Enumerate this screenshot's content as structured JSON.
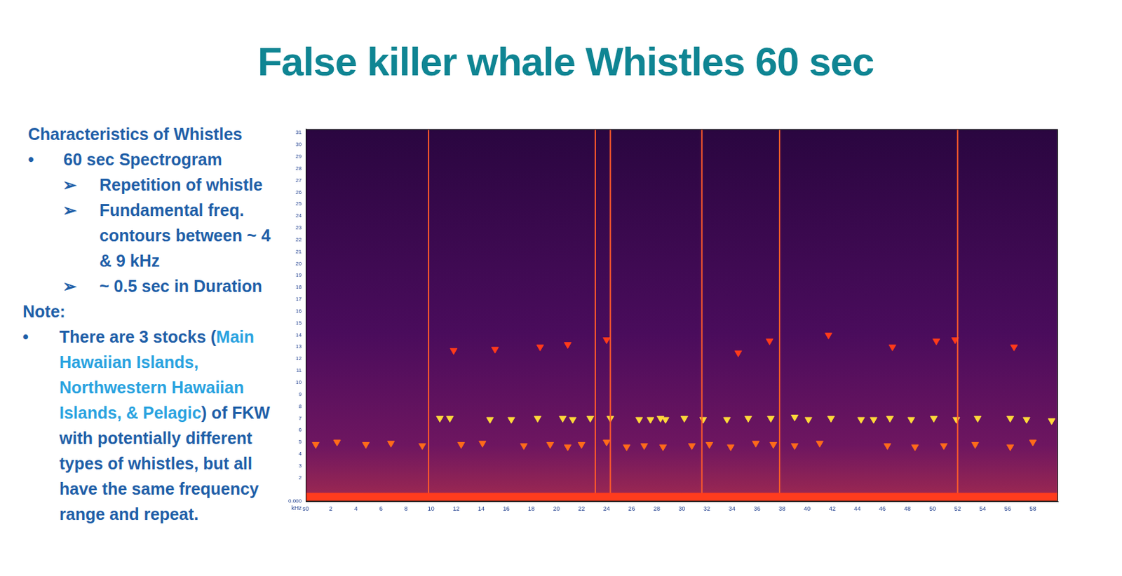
{
  "title": "False killer whale Whistles 60 sec",
  "left_text": {
    "heading": "Characteristics of Whistles",
    "bullet": "60 sec Spectrogram",
    "sub_bullets": [
      "Repetition of whistle",
      "Fundamental freq. contours between ~ 4 & 9 kHz",
      "~ 0.5 sec in Duration"
    ],
    "note_heading": "Note:",
    "note_parts": [
      {
        "text": "There are 3 stocks (",
        "color": "#1f5fa8"
      },
      {
        "text": "Main Hawaiian Islands, Northwestern Hawaiian Islands, & Pelagic",
        "color": "#2aa3e0"
      },
      {
        "text": ") of FKW with potentially different types of whistles, but all have the same frequency range and repeat.",
        "color": "#1f5fa8"
      }
    ]
  },
  "chart_data": {
    "type": "scatter",
    "ylabel": "kHz",
    "xlim": [
      0,
      60
    ],
    "ylim": [
      0,
      31.3
    ],
    "xticks": [
      {
        "value": 0,
        "label": "s0"
      },
      2,
      4,
      6,
      8,
      10,
      12,
      14,
      16,
      18,
      20,
      22,
      24,
      26,
      28,
      30,
      32,
      34,
      36,
      38,
      40,
      42,
      44,
      46,
      48,
      50,
      52,
      54,
      56,
      58
    ],
    "yticks": [
      {
        "value": 0,
        "label": "0.000"
      },
      2,
      3,
      4,
      5,
      6,
      7,
      8,
      9,
      10,
      11,
      12,
      13,
      14,
      15,
      16,
      17,
      18,
      19,
      20,
      21,
      22,
      23,
      24,
      25,
      26,
      27,
      28,
      29,
      30,
      31
    ],
    "grid": false,
    "series": [
      {
        "type": "band",
        "color": "#ff3c1e",
        "values": [
          0,
          0.7
        ]
      },
      {
        "type": "vline",
        "color": "#ff5a2a",
        "x": [
          9.8,
          23.1,
          24.3,
          31.6,
          37.8,
          52.0
        ]
      },
      {
        "type": "scatter",
        "color": "#ff6a1a",
        "marker": "triangle-down",
        "x": [
          0.8,
          2.5,
          4.8,
          6.8,
          9.3,
          12.4,
          14.1,
          17.4,
          19.5,
          20.9,
          22.0,
          24.0,
          25.6,
          27.0,
          28.5,
          30.8,
          32.2,
          33.9,
          35.9,
          37.3,
          39.0,
          41.0,
          46.4,
          48.6,
          50.9,
          53.4,
          56.2,
          58.0
        ],
        "values": [
          4.8,
          5.0,
          4.8,
          4.9,
          4.7,
          4.8,
          4.9,
          4.7,
          4.8,
          4.6,
          4.8,
          5.0,
          4.6,
          4.7,
          4.6,
          4.7,
          4.8,
          4.6,
          4.9,
          4.8,
          4.7,
          4.9,
          4.7,
          4.6,
          4.7,
          4.8,
          4.6,
          5.0
        ]
      },
      {
        "type": "scatter",
        "color": "#ffd83a",
        "marker": "triangle-down",
        "x": [
          10.7,
          11.5,
          14.7,
          16.4,
          18.5,
          20.5,
          21.3,
          22.7,
          24.3,
          26.6,
          27.5,
          28.3,
          28.7,
          30.2,
          31.7,
          33.6,
          35.3,
          37.1,
          39.0,
          40.1,
          41.9,
          44.3,
          45.3,
          46.6,
          48.3,
          50.1,
          51.9,
          53.6,
          56.2,
          57.5,
          59.5
        ],
        "values": [
          7.0,
          7.0,
          6.9,
          6.9,
          7.0,
          7.0,
          6.9,
          7.0,
          7.0,
          6.9,
          6.9,
          7.0,
          6.9,
          7.0,
          6.9,
          6.9,
          7.0,
          7.0,
          7.1,
          6.9,
          7.0,
          6.9,
          6.9,
          7.0,
          6.9,
          7.0,
          6.9,
          7.0,
          7.0,
          6.9,
          6.8
        ]
      },
      {
        "type": "scatter",
        "color": "#ff3a1a",
        "marker": "triangle-down",
        "x": [
          11.8,
          15.1,
          18.7,
          20.9,
          24.0,
          34.5,
          37.0,
          41.7,
          46.8,
          50.3,
          51.8,
          56.5
        ],
        "values": [
          12.7,
          12.8,
          13.0,
          13.2,
          13.6,
          12.5,
          13.5,
          14.0,
          13.0,
          13.5,
          13.6,
          13.0
        ]
      }
    ]
  }
}
